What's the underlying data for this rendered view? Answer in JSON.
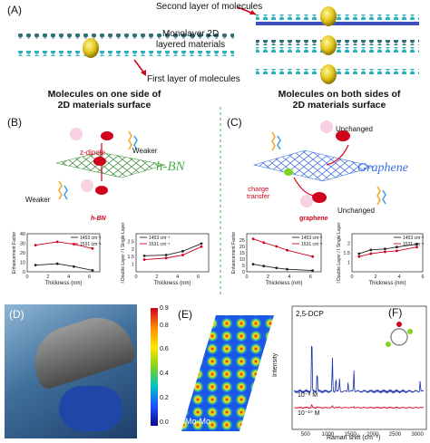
{
  "panel_a": {
    "letter": "(A)",
    "second_layer": "Second layer of molecules",
    "monolayer": "Monolayer 2D\nlayered materials",
    "first_layer": "First layer of molecules",
    "caption_left": "Molecules on one side of\n2D materials surface",
    "caption_right": "Molecules on both sides of\n2D materials surface"
  },
  "panel_b": {
    "letter": "(B)",
    "z_dipole": "z-dipole",
    "weaker_top": "Weaker",
    "weaker_bottom": "Weaker",
    "material": "h-BN",
    "material_red": "h-BN"
  },
  "panel_c": {
    "letter": "(C)",
    "unchanged_top": "Unchanged",
    "unchanged_bottom": "Unchanged",
    "charge_transfer": "charge\ntransfer",
    "material": "Graphene",
    "material_red": "graphene"
  },
  "panel_d": {
    "letter": "(D)"
  },
  "panel_e": {
    "letter": "(E)",
    "label": "Mo-Mo",
    "colorbar_ticks": [
      "0.9",
      "0.8",
      "0.6",
      "0.4",
      "0.2",
      "0.0"
    ]
  },
  "panel_f": {
    "letter": "(F)",
    "compound": "2,5-DCP",
    "conc_1": "10⁻⁶ M",
    "conc_2": "10⁻¹⁰ M",
    "xlabel": "Raman shift (cm⁻¹)",
    "ylabel": "Intensity",
    "xticks": [
      "500",
      "1000",
      "1500",
      "2000",
      "2500",
      "3000"
    ]
  },
  "chart_data": [
    {
      "type": "line",
      "panel": "B-left",
      "xlabel": "Thickness (nm)",
      "ylabel": "Enhancement Factor",
      "xlim": [
        0,
        7
      ],
      "ylim": [
        0,
        40
      ],
      "xticks": [
        0,
        2,
        4,
        6
      ],
      "yticks": [
        0,
        10,
        20,
        30,
        40
      ],
      "legend": "top-right",
      "series": [
        {
          "name": "1453 cm⁻¹",
          "color": "#222222",
          "x": [
            0.8,
            2.9,
            4.5,
            6.3
          ],
          "y": [
            7,
            8.5,
            5.5,
            1.5
          ]
        },
        {
          "name": "1531 cm⁻¹",
          "color": "#d0021b",
          "x": [
            0.8,
            2.9,
            4.5,
            6.3
          ],
          "y": [
            28,
            31.5,
            29,
            24.5
          ]
        }
      ]
    },
    {
      "type": "line",
      "panel": "B-right",
      "xlabel": "Thickness (nm)",
      "ylabel": "I Double Layer / I Single Layer",
      "xlim": [
        0,
        7
      ],
      "ylim": [
        0.5,
        3.0
      ],
      "xticks": [
        0,
        2,
        4,
        6
      ],
      "yticks": [
        1.0,
        1.5,
        2.0,
        2.5
      ],
      "legend": "top-left",
      "series": [
        {
          "name": "1453 cm⁻¹",
          "color": "#222222",
          "x": [
            0.8,
            2.9,
            4.5,
            6.3
          ],
          "y": [
            1.55,
            1.6,
            1.85,
            2.35
          ]
        },
        {
          "name": "1531 cm⁻¹",
          "color": "#d0021b",
          "x": [
            0.8,
            2.9,
            4.5,
            6.3
          ],
          "y": [
            1.3,
            1.4,
            1.6,
            2.15
          ]
        }
      ]
    },
    {
      "type": "line",
      "panel": "C-left",
      "xlabel": "Thickness (nm)",
      "ylabel": "Enhancement Factor",
      "xlim": [
        0,
        7
      ],
      "ylim": [
        0,
        30
      ],
      "xticks": [
        0,
        2,
        4,
        6
      ],
      "yticks": [
        0,
        5,
        10,
        15,
        20,
        25
      ],
      "legend": "top-right",
      "series": [
        {
          "name": "1453 cm⁻¹",
          "color": "#222222",
          "x": [
            0.6,
            1.6,
            2.8,
            3.8,
            6.2
          ],
          "y": [
            6,
            4.5,
            3,
            2,
            1
          ]
        },
        {
          "name": "1531 cm⁻¹",
          "color": "#d0021b",
          "x": [
            0.6,
            1.6,
            2.8,
            3.8,
            6.2
          ],
          "y": [
            26,
            23,
            20,
            17,
            12
          ]
        }
      ]
    },
    {
      "type": "line",
      "panel": "C-right",
      "xlabel": "Thickness (nm)",
      "ylabel": "I Double Layer / I Single Layer",
      "xlim": [
        0,
        6
      ],
      "ylim": [
        0.5,
        2.5
      ],
      "xticks": [
        0,
        2,
        4,
        6
      ],
      "yticks": [
        1.0,
        1.5,
        2.0
      ],
      "legend": "top-right",
      "series": [
        {
          "name": "1453 cm⁻¹",
          "color": "#222222",
          "x": [
            0.6,
            1.6,
            2.8,
            3.8,
            5.5
          ],
          "y": [
            1.45,
            1.65,
            1.7,
            1.8,
            1.95
          ]
        },
        {
          "name": "1531 cm⁻¹",
          "color": "#d0021b",
          "x": [
            0.6,
            1.6,
            2.8,
            3.8,
            5.5
          ],
          "y": [
            1.3,
            1.45,
            1.55,
            1.6,
            1.8
          ]
        }
      ]
    }
  ]
}
